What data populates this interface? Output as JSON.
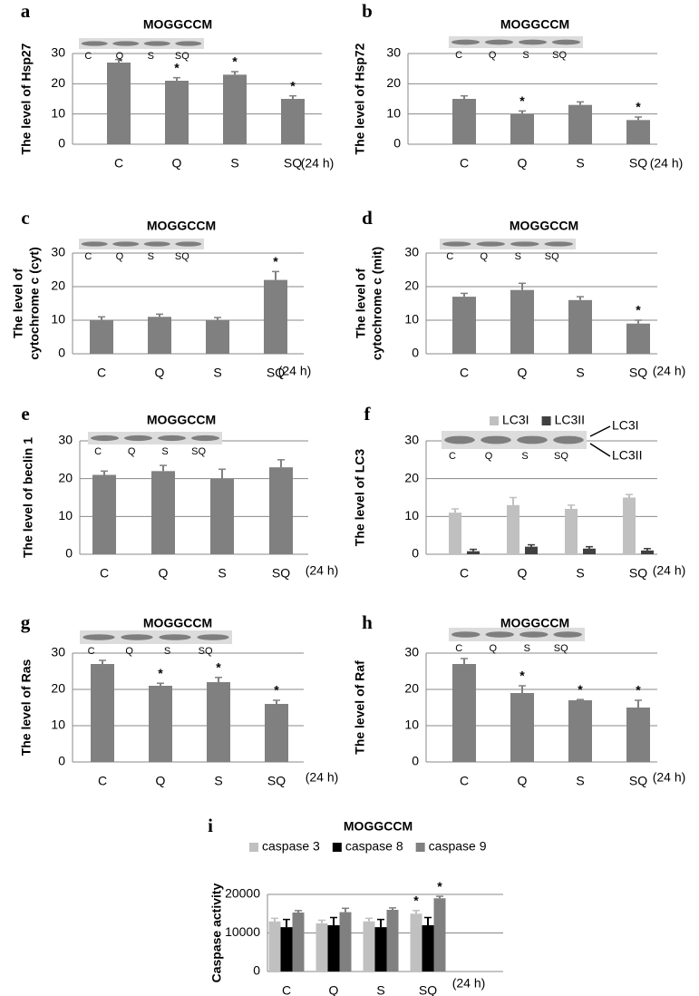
{
  "chart_data": [
    {
      "type": "bar",
      "panel": "a",
      "title": "MOGGCCM",
      "ylabel": [
        "The level of Hsp27"
      ],
      "categories": [
        "C",
        "Q",
        "S",
        "SQ"
      ],
      "note": "(24 h)",
      "blot_lanes": [
        "C",
        "Q",
        "S",
        "SQ"
      ],
      "ylim": [
        0,
        30
      ],
      "yticks": [
        0,
        10,
        20,
        30
      ],
      "grid": true,
      "series": [
        {
          "color": "#808080",
          "values": [
            27,
            21,
            23,
            15
          ],
          "errors": [
            1,
            1,
            1,
            1
          ],
          "significance": [
            null,
            "*",
            "*",
            "*"
          ]
        }
      ]
    },
    {
      "type": "bar",
      "panel": "b",
      "title": "MOGGCCM",
      "ylabel": [
        "The level of Hsp72"
      ],
      "categories": [
        "C",
        "Q",
        "S",
        "SQ"
      ],
      "note": "(24 h)",
      "blot_lanes": [
        "C",
        "Q",
        "S",
        "SQ"
      ],
      "ylim": [
        0,
        30
      ],
      "yticks": [
        0,
        10,
        20,
        30
      ],
      "grid": true,
      "series": [
        {
          "color": "#808080",
          "values": [
            15,
            10,
            13,
            8
          ],
          "errors": [
            1,
            1,
            1,
            1
          ],
          "significance": [
            null,
            "*",
            null,
            "*"
          ]
        }
      ]
    },
    {
      "type": "bar",
      "panel": "c",
      "title": "MOGGCCM",
      "ylabel": [
        "The level of",
        "cytochrome c (cyt)"
      ],
      "categories": [
        "C",
        "Q",
        "S",
        "SQ"
      ],
      "note": "(24 h)",
      "blot_lanes": [
        "C",
        "Q",
        "S",
        "SQ"
      ],
      "ylim": [
        0,
        30
      ],
      "yticks": [
        0,
        10,
        20,
        30
      ],
      "grid": true,
      "series": [
        {
          "color": "#808080",
          "values": [
            10,
            11,
            10,
            22
          ],
          "errors": [
            1,
            0.8,
            0.8,
            2.5
          ],
          "significance": [
            null,
            null,
            null,
            "*"
          ]
        }
      ]
    },
    {
      "type": "bar",
      "panel": "d",
      "title": "MOGGCCM",
      "ylabel": [
        "The level of",
        "cytochrome c (mit)"
      ],
      "categories": [
        "C",
        "Q",
        "S",
        "SQ"
      ],
      "note": "(24 h)",
      "blot_lanes": [
        "C",
        "Q",
        "S",
        "SQ"
      ],
      "ylim": [
        0,
        30
      ],
      "yticks": [
        0,
        10,
        20,
        30
      ],
      "grid": true,
      "series": [
        {
          "color": "#808080",
          "values": [
            17,
            19,
            16,
            9
          ],
          "errors": [
            1,
            2,
            1,
            1
          ],
          "significance": [
            null,
            null,
            null,
            "*"
          ]
        }
      ]
    },
    {
      "type": "bar",
      "panel": "e",
      "title": "MOGGCCM",
      "ylabel": [
        "The level of beclin 1"
      ],
      "categories": [
        "C",
        "Q",
        "S",
        "SQ"
      ],
      "note": "(24 h)",
      "blot_lanes": [
        "C",
        "Q",
        "S",
        "SQ"
      ],
      "ylim": [
        0,
        30
      ],
      "yticks": [
        0,
        10,
        20,
        30
      ],
      "grid": true,
      "series": [
        {
          "color": "#808080",
          "values": [
            21,
            22,
            20,
            23
          ],
          "errors": [
            1,
            1.5,
            2.5,
            2
          ],
          "significance": [
            null,
            null,
            null,
            null
          ]
        }
      ]
    },
    {
      "type": "bar",
      "panel": "f",
      "ylabel": [
        "The level of LC3"
      ],
      "categories": [
        "C",
        "Q",
        "S",
        "SQ"
      ],
      "note": "(24 h)",
      "blot_lanes": [
        "C",
        "Q",
        "S",
        "SQ"
      ],
      "blot_annotations": [
        "LC3I",
        "LC3II"
      ],
      "ylim": [
        0,
        30
      ],
      "yticks": [
        0,
        10,
        20,
        30
      ],
      "grid": true,
      "series": [
        {
          "name": "LC3I",
          "color": "#c0c0c0",
          "values": [
            11,
            13,
            12,
            15
          ],
          "errors": [
            1,
            2,
            1,
            0.8
          ],
          "significance": [
            null,
            null,
            null,
            null
          ]
        },
        {
          "name": "LC3II",
          "color": "#404040",
          "values": [
            0.8,
            2,
            1.5,
            1
          ],
          "errors": [
            0.5,
            0.5,
            0.5,
            0.5
          ],
          "significance": [
            null,
            null,
            null,
            null
          ]
        }
      ]
    },
    {
      "type": "bar",
      "panel": "g",
      "title": "MOGGCCM",
      "ylabel": [
        "The level of Ras"
      ],
      "categories": [
        "C",
        "Q",
        "S",
        "SQ"
      ],
      "note": "(24 h)",
      "blot_lanes": [
        "C",
        "Q",
        "S",
        "SQ"
      ],
      "ylim": [
        0,
        30
      ],
      "yticks": [
        0,
        10,
        20,
        30
      ],
      "grid": true,
      "series": [
        {
          "color": "#808080",
          "values": [
            27,
            21,
            22,
            16
          ],
          "errors": [
            1,
            0.7,
            1.3,
            1
          ],
          "significance": [
            null,
            "*",
            "*",
            "*"
          ]
        }
      ]
    },
    {
      "type": "bar",
      "panel": "h",
      "title": "MOGGCCM",
      "ylabel": [
        "The level of Raf"
      ],
      "categories": [
        "C",
        "Q",
        "S",
        "SQ"
      ],
      "note": "(24 h)",
      "blot_lanes": [
        "C",
        "Q",
        "S",
        "SQ"
      ],
      "ylim": [
        0,
        30
      ],
      "yticks": [
        0,
        10,
        20,
        30
      ],
      "grid": true,
      "series": [
        {
          "color": "#808080",
          "values": [
            27,
            19,
            17,
            15
          ],
          "errors": [
            1.5,
            2,
            0.2,
            2
          ],
          "significance": [
            null,
            "*",
            "*",
            "*"
          ]
        }
      ]
    },
    {
      "type": "bar",
      "panel": "i",
      "title": "MOGGCCM",
      "ylabel": [
        "Caspase activity"
      ],
      "categories": [
        "C",
        "Q",
        "S",
        "SQ"
      ],
      "note": "(24 h)",
      "ylim": [
        0,
        20000
      ],
      "yticks": [
        0,
        10000,
        20000
      ],
      "grid": true,
      "series": [
        {
          "name": "caspase 3",
          "color": "#c0c0c0",
          "values": [
            13000,
            12500,
            13000,
            15000
          ],
          "errors": [
            800,
            800,
            800,
            800
          ],
          "significance": [
            null,
            null,
            null,
            "*"
          ]
        },
        {
          "name": "caspase 8",
          "color": "#000000",
          "values": [
            11500,
            12000,
            11500,
            12000
          ],
          "errors": [
            2000,
            2000,
            2000,
            2000
          ],
          "significance": [
            null,
            null,
            null,
            null
          ]
        },
        {
          "name": "caspase 9",
          "color": "#808080",
          "values": [
            15300,
            15400,
            16000,
            19000
          ],
          "errors": [
            500,
            1000,
            500,
            500
          ],
          "significance": [
            null,
            null,
            null,
            "*"
          ]
        }
      ]
    }
  ]
}
